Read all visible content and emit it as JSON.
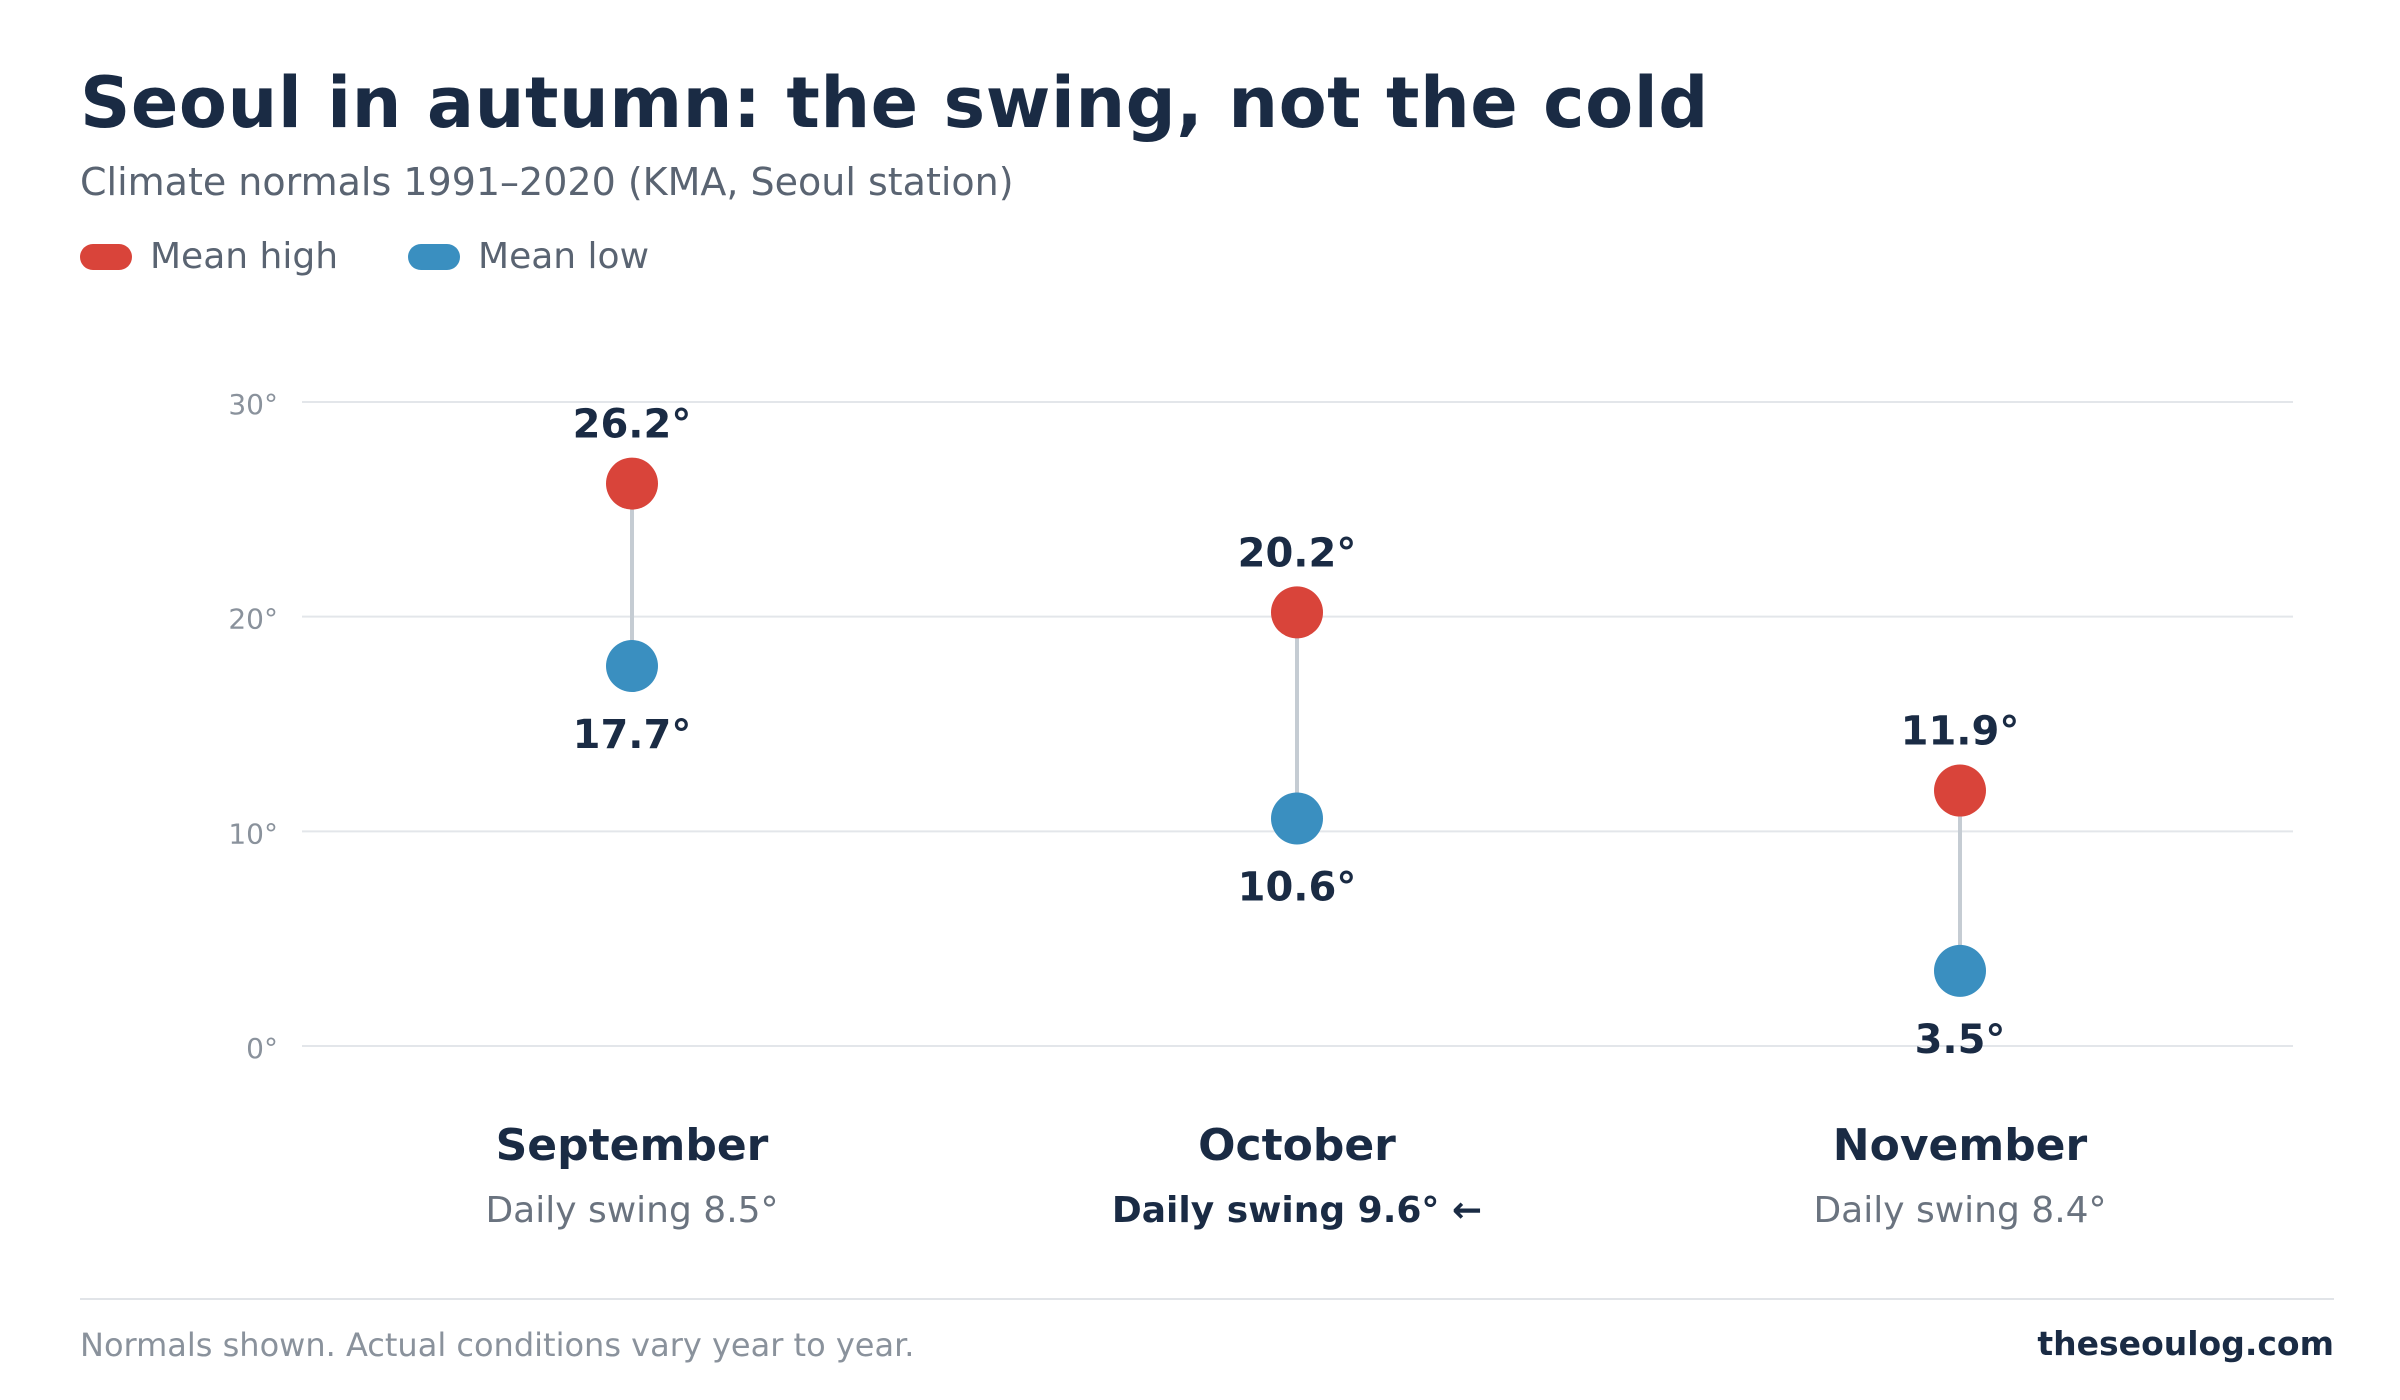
{
  "header": {
    "title": "Seoul in autumn: the swing, not the cold",
    "subtitle": "Climate normals 1991–2020 (KMA, Seoul station)"
  },
  "legend": {
    "items": [
      {
        "label": "Mean high",
        "color": "#d9443a"
      },
      {
        "label": "Mean low",
        "color": "#3a8fc0"
      }
    ]
  },
  "chart_data": {
    "type": "dumbbell",
    "categories": [
      "September",
      "October",
      "November"
    ],
    "series": [
      {
        "name": "Mean high",
        "values": [
          26.2,
          20.2,
          11.9
        ],
        "labels": [
          "26.2°",
          "20.2°",
          "11.9°"
        ],
        "color": "#d9443a"
      },
      {
        "name": "Mean low",
        "values": [
          17.7,
          10.6,
          3.5
        ],
        "labels": [
          "17.7°",
          "10.6°",
          "3.5°"
        ],
        "color": "#3a8fc0"
      }
    ],
    "swing_labels": [
      "Daily swing 8.5°",
      "Daily swing 9.6° ←",
      "Daily swing 8.4°"
    ],
    "highlight_index": 1,
    "y_ticks": [
      0,
      10,
      20,
      30
    ],
    "y_tick_labels": [
      "0°",
      "10°",
      "20°",
      "30°"
    ],
    "ylim": [
      0,
      30
    ],
    "grid": true,
    "legend_position": "top-left"
  },
  "footer": {
    "note": "Normals shown. Actual conditions vary year to year.",
    "brand": "theseoulog.com"
  }
}
